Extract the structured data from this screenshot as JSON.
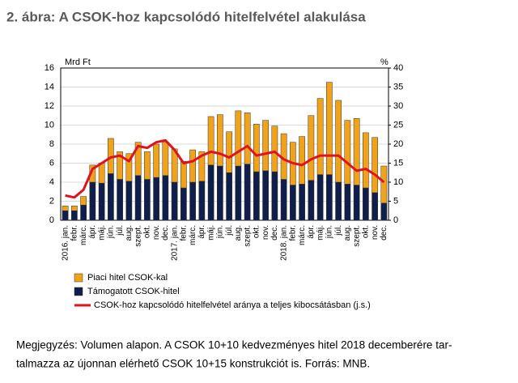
{
  "chart_data": {
    "type": "bar",
    "title": "2. ábra: A CSOK-hoz kapcsolódó hitelfelvétel alakulása",
    "y_label": "Mrd Ft",
    "y2_label": "%",
    "categories": [
      "2016. jan.",
      "febr.",
      "márc.",
      "ápr.",
      "máj.",
      "jún.",
      "júl.",
      "aug.",
      "szept.",
      "okt.",
      "nov.",
      "dec.",
      "2017. jan.",
      "febr.",
      "márc.",
      "ápr.",
      "máj.",
      "jún.",
      "júl.",
      "aug.",
      "szept.",
      "okt.",
      "nov.",
      "dec.",
      "2018. jan.",
      "febr.",
      "márc.",
      "ápr.",
      "máj.",
      "jún.",
      "júl.",
      "aug.",
      "szept.",
      "okt.",
      "nov.",
      "dec."
    ],
    "stacked": true,
    "series": [
      {
        "name": "Támogatott CSOK-hitel",
        "color": "#0f1e4b",
        "values": [
          1.0,
          1.0,
          1.6,
          4.0,
          3.9,
          4.9,
          4.3,
          4.1,
          4.7,
          4.3,
          4.5,
          4.7,
          4.0,
          3.4,
          4.0,
          4.1,
          5.8,
          5.7,
          5.0,
          5.7,
          5.9,
          5.1,
          5.2,
          5.1,
          4.3,
          3.7,
          3.8,
          4.2,
          4.8,
          4.8,
          4.0,
          3.8,
          3.7,
          3.4,
          2.9,
          1.8
        ]
      },
      {
        "name": "Piaci hitel CSOK-kal",
        "color": "#f0a31a",
        "values": [
          0.5,
          0.5,
          0.9,
          1.8,
          2.1,
          3.7,
          2.9,
          2.9,
          3.5,
          2.9,
          3.5,
          3.5,
          3.5,
          2.8,
          3.4,
          3.1,
          5.1,
          5.4,
          4.3,
          5.8,
          5.4,
          5.0,
          5.3,
          4.8,
          4.8,
          4.5,
          5.0,
          6.8,
          8.0,
          9.7,
          8.6,
          6.7,
          7.0,
          5.8,
          5.8,
          3.9
        ]
      },
      {
        "name": "CSOK-hoz kapcsolódó hitelfelvétel aránya a teljes kibocsátásban (j.s.)",
        "color": "#e0121c",
        "type": "line",
        "axis": "y2",
        "values": [
          6.5,
          6,
          8,
          13.5,
          15,
          16.5,
          17,
          15.5,
          19.5,
          19,
          20.5,
          21,
          18.5,
          15,
          15.5,
          17,
          18,
          17.5,
          16.5,
          18,
          19.5,
          17,
          17.5,
          18,
          16,
          15,
          14.5,
          16,
          17,
          17,
          17,
          15,
          13,
          13.5,
          12,
          10
        ]
      }
    ],
    "ylim": [
      0,
      16
    ],
    "yticks": [
      0,
      2,
      4,
      6,
      8,
      10,
      12,
      14,
      16
    ],
    "y2lim": [
      0,
      40
    ],
    "y2ticks": [
      0,
      5,
      10,
      15,
      20,
      25,
      30,
      35,
      40
    ],
    "grid": true,
    "notes": [
      "Megjegyzés: Volumen alapon. A CSOK 10+10 kedvezményes hitel 2018 decemberére tar-",
      "talmazza az újonnan elérhető CSOK 10+15 konstrukciót is. Forrás: MNB."
    ]
  }
}
